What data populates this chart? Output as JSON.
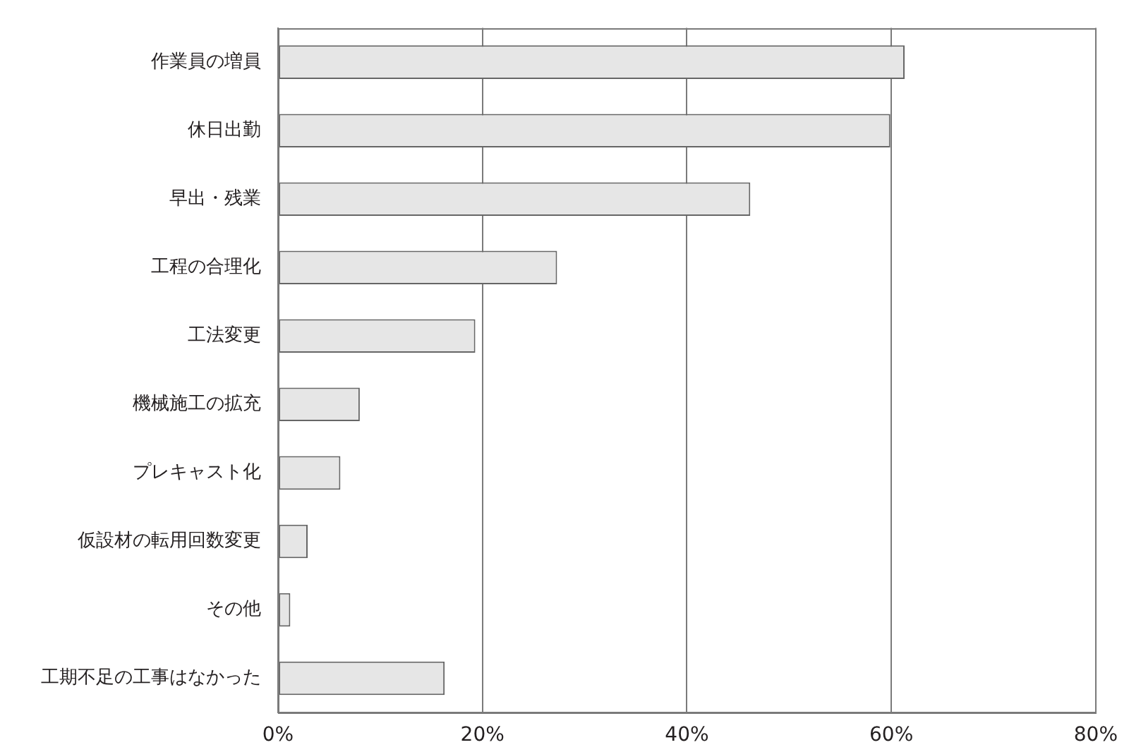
{
  "chart_data": {
    "type": "bar",
    "orientation": "horizontal",
    "categories": [
      "作業員の増員",
      "休日出勤",
      "早出・残業",
      "工程の合理化",
      "工法変更",
      "機械施工の拡充",
      "プレキャスト化",
      "仮設材の転用回数変更",
      "その他",
      "工期不足の工事はなかった"
    ],
    "values": [
      61.3,
      59.9,
      46.2,
      27.3,
      19.3,
      8.0,
      6.1,
      2.9,
      1.2,
      16.3
    ],
    "color": "#e6e6e6",
    "xlim": [
      0,
      80
    ],
    "xticks": [
      {
        "value": 0,
        "label": "0%"
      },
      {
        "value": 20,
        "label": "20%"
      },
      {
        "value": 40,
        "label": "40%"
      },
      {
        "value": 60,
        "label": "60%"
      },
      {
        "value": 80,
        "label": "80%"
      }
    ],
    "grid": "x"
  }
}
